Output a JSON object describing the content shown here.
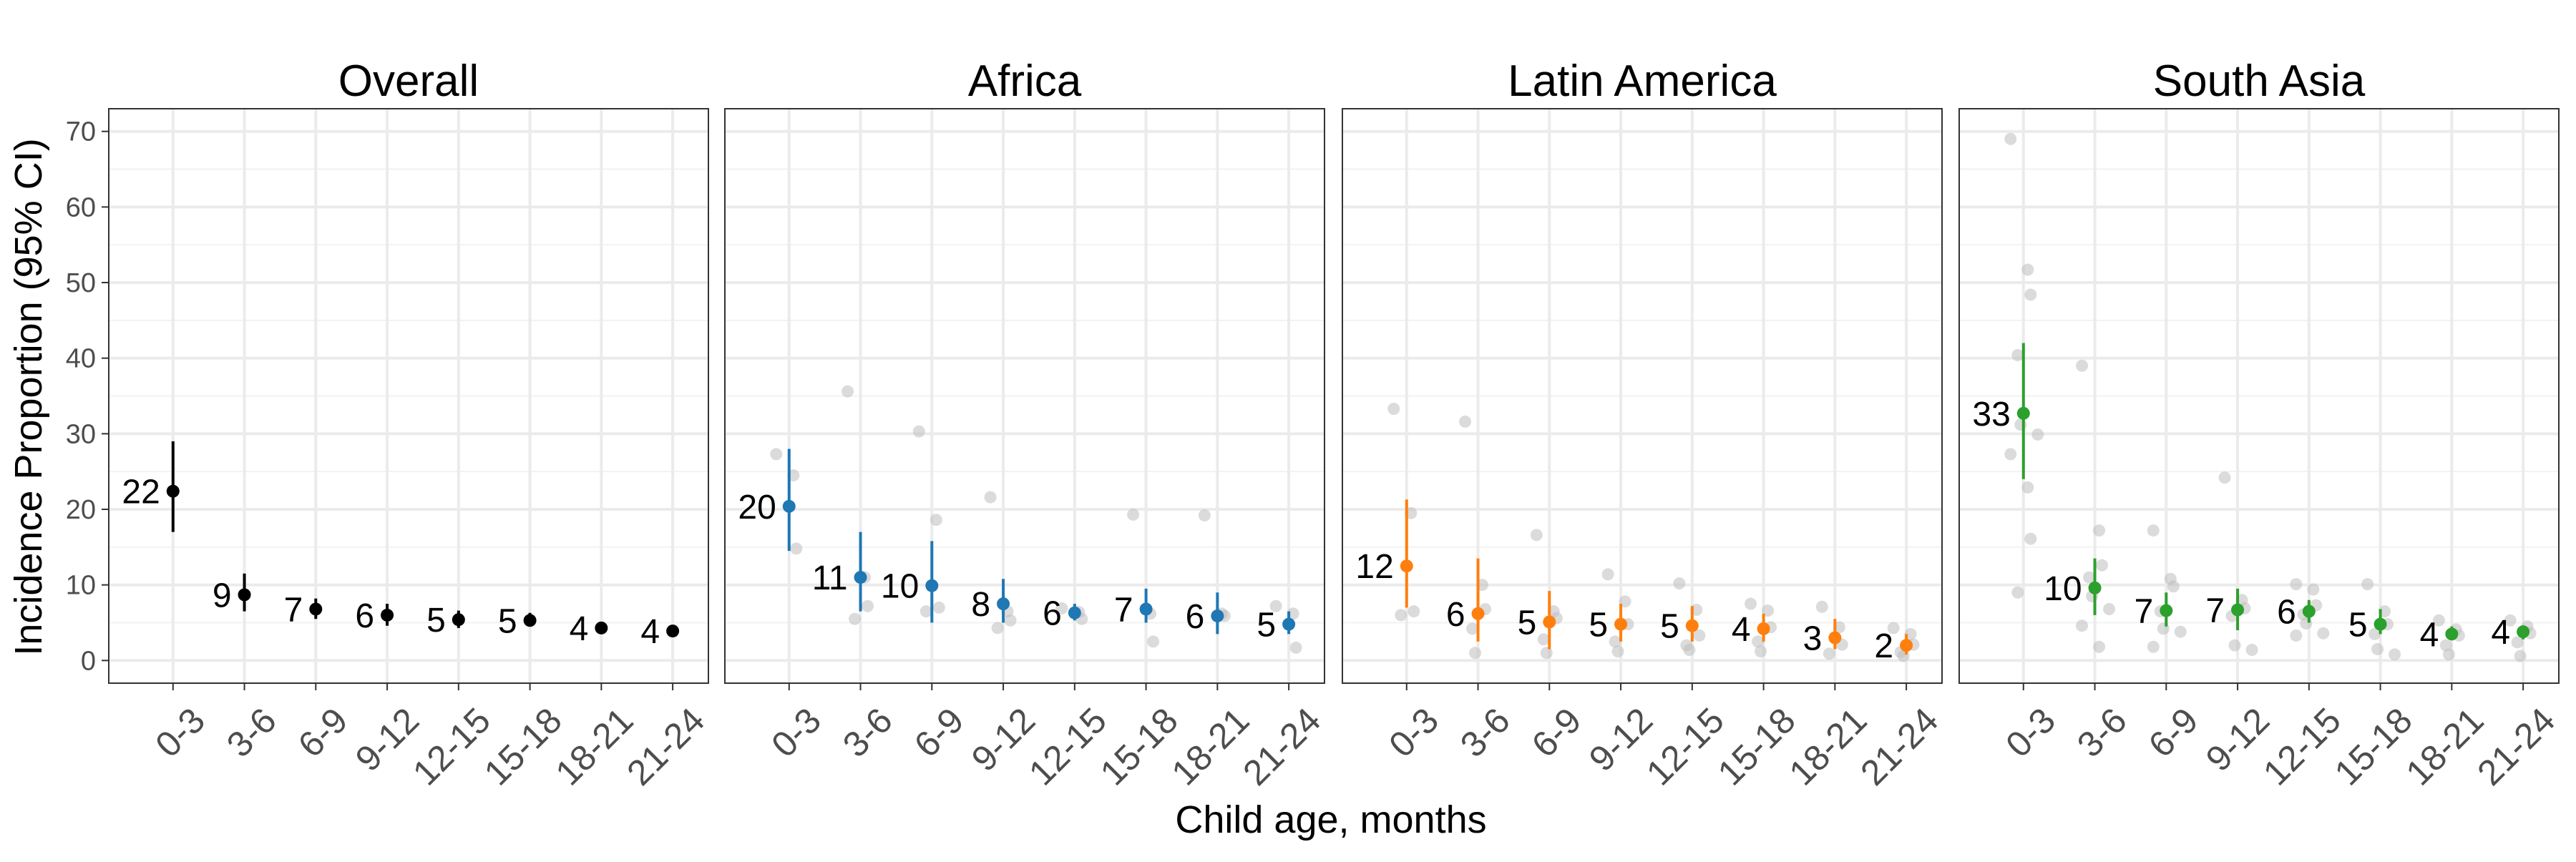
{
  "figure": {
    "ylabel": "Incidence Proportion (95% CI)",
    "xlabel": "Child age, months"
  },
  "chart_data": {
    "type": "scatter",
    "categories": [
      "0-3",
      "3-6",
      "6-9",
      "9-12",
      "12-15",
      "15-18",
      "18-21",
      "21-24"
    ],
    "ylim": [
      -3,
      73
    ],
    "yticks": [
      0,
      10,
      20,
      30,
      40,
      50,
      60,
      70
    ],
    "grid": true,
    "panels": [
      {
        "title": "Overall",
        "color": "#000000",
        "estimates": [
          22.4,
          8.7,
          6.8,
          6.0,
          5.4,
          5.3,
          4.3,
          3.9
        ],
        "labels": [
          "22",
          "9",
          "7",
          "6",
          "5",
          "5",
          "4",
          "4"
        ],
        "ci_lower": [
          17.0,
          6.5,
          5.5,
          4.6,
          4.3,
          4.5,
          3.5,
          3.2
        ],
        "ci_upper": [
          29.0,
          11.5,
          8.2,
          7.5,
          6.6,
          6.3,
          5.0,
          4.6
        ],
        "cohorts": []
      },
      {
        "title": "Africa",
        "color": "#1f77b4",
        "estimates": [
          20.4,
          11.0,
          9.9,
          7.5,
          6.3,
          6.8,
          5.9,
          4.8
        ],
        "labels": [
          "20",
          "11",
          "10",
          "8",
          "6",
          "7",
          "6",
          "5"
        ],
        "ci_lower": [
          14.5,
          6.5,
          5.0,
          5.0,
          5.3,
          5.0,
          3.5,
          3.5
        ],
        "ci_upper": [
          28.0,
          17.0,
          15.8,
          10.8,
          7.5,
          9.5,
          9.0,
          6.5
        ],
        "cohorts": [
          [
            27.3,
            24.5,
            14.8
          ],
          [
            35.6,
            11.0,
            7.2,
            5.5
          ],
          [
            30.3,
            18.6,
            7.0,
            6.5
          ],
          [
            21.6,
            6.5,
            5.3,
            4.3
          ],
          [
            6.9,
            6.4,
            5.5
          ],
          [
            19.3,
            6.2,
            2.5
          ],
          [
            19.2,
            6.2,
            5.9
          ],
          [
            7.2,
            6.2,
            1.7
          ]
        ]
      },
      {
        "title": "Latin America",
        "color": "#ff7f0e",
        "estimates": [
          12.5,
          6.2,
          5.1,
          4.8,
          4.6,
          4.2,
          3.0,
          2.0
        ],
        "labels": [
          "12",
          "6",
          "5",
          "5",
          "5",
          "4",
          "3",
          "2"
        ],
        "ci_lower": [
          7.0,
          2.5,
          1.5,
          2.5,
          2.5,
          2.5,
          1.5,
          0.8
        ],
        "ci_upper": [
          21.3,
          13.5,
          9.2,
          7.5,
          7.2,
          6.2,
          5.5,
          3.5
        ],
        "cohorts": [
          [
            33.3,
            19.5,
            6.5,
            6.0
          ],
          [
            31.6,
            10.0,
            6.8,
            4.2,
            1.0
          ],
          [
            16.6,
            6.5,
            5.6,
            2.8,
            1.0
          ],
          [
            11.4,
            7.8,
            4.8,
            2.5,
            1.2
          ],
          [
            10.2,
            6.7,
            3.3,
            2.0,
            1.4
          ],
          [
            7.5,
            6.6,
            4.4,
            2.5,
            1.2
          ],
          [
            7.1,
            4.4,
            2.1,
            0.9
          ],
          [
            4.3,
            3.5,
            2.1,
            1.1,
            0.6
          ]
        ]
      },
      {
        "title": "South Asia",
        "color": "#2ca02c",
        "estimates": [
          32.7,
          9.6,
          6.6,
          6.7,
          6.5,
          4.8,
          3.5,
          3.8
        ],
        "labels": [
          "33",
          "10",
          "7",
          "7",
          "6",
          "5",
          "4",
          "4"
        ],
        "ci_lower": [
          24.0,
          6.0,
          4.5,
          4.0,
          5.0,
          3.5,
          2.8,
          2.8
        ],
        "ci_upper": [
          42.0,
          13.5,
          9.0,
          9.5,
          8.0,
          6.8,
          4.5,
          4.5
        ],
        "cohorts": [
          [
            69.0,
            51.7,
            48.4,
            40.4,
            31.2,
            29.9,
            27.3,
            22.9,
            16.1,
            9.0
          ],
          [
            39.0,
            17.2,
            12.6,
            11.0,
            8.5,
            6.8,
            4.6,
            1.8
          ],
          [
            17.2,
            10.8,
            9.8,
            6.5,
            4.2,
            3.8,
            1.8
          ],
          [
            24.2,
            8.0,
            6.9,
            5.9,
            2.0,
            1.4
          ],
          [
            10.1,
            9.4,
            7.3,
            6.1,
            4.9,
            3.6,
            3.3
          ],
          [
            10.1,
            6.5,
            4.8,
            3.5,
            1.5,
            0.8
          ],
          [
            5.3,
            4.1,
            3.3,
            2.0,
            0.8
          ],
          [
            5.3,
            4.5,
            3.6,
            2.4,
            0.6
          ]
        ]
      }
    ]
  }
}
